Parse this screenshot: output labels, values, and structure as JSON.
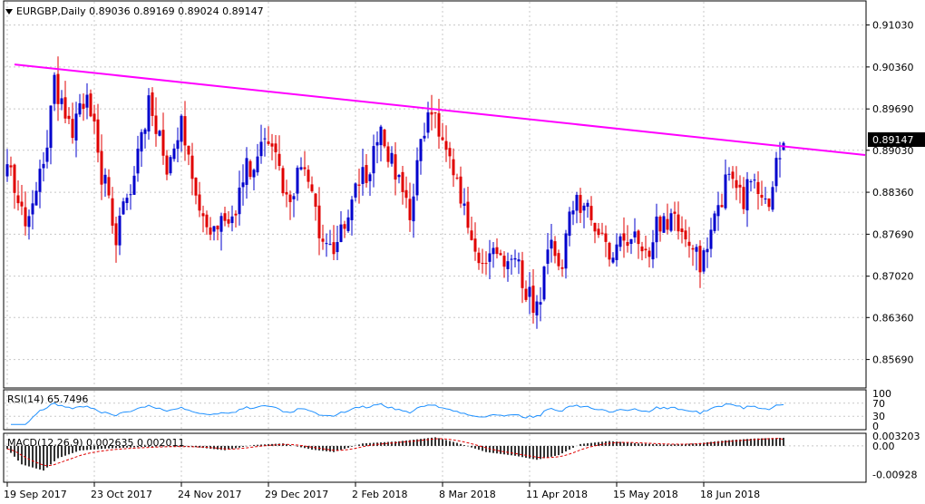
{
  "header": {
    "symbol_line": "EURGBP,Daily  0.89036 0.89169 0.89024 0.89147",
    "rsi_label": "RSI(14) 65.7496",
    "macd_label": "MACD(12,26,9) 0.002635 0.002011"
  },
  "colors": {
    "bull": "#0000cc",
    "bear": "#e00000",
    "trendline": "#ff00ff",
    "rsi_line": "#1e90ff",
    "macd_hist": "#000000",
    "macd_signal": "#e00000",
    "grid": "#c8c8c8"
  },
  "price_marker": "0.89147",
  "chart_data": [
    {
      "type": "candlestick",
      "title": "EURGBP,Daily",
      "last_ohlc": {
        "open": 0.89036,
        "high": 0.89169,
        "low": 0.89024,
        "close": 0.89147
      },
      "ylim": [
        0.8525,
        0.914
      ],
      "y_ticks": [
        "0.91030",
        "0.90360",
        "0.89690",
        "0.89030",
        "0.88360",
        "0.87690",
        "0.87020",
        "0.86360",
        "0.85690"
      ],
      "y_tick_values": [
        0.9103,
        0.9036,
        0.8969,
        0.8903,
        0.8836,
        0.8769,
        0.8702,
        0.8636,
        0.8569
      ],
      "x_ticks": [
        "19 Sep 2017",
        "23 Oct 2017",
        "24 Nov 2017",
        "29 Dec 2017",
        "2 Feb 2018",
        "8 Mar 2018",
        "11 Apr 2018",
        "15 May 2018",
        "18 Jun 2018"
      ],
      "x_tick_index": [
        0,
        24,
        48,
        72,
        96,
        120,
        144,
        168,
        192
      ],
      "count": 215,
      "anchors": [
        [
          0,
          0.887
        ],
        [
          6,
          0.879
        ],
        [
          10,
          0.888
        ],
        [
          13,
          0.901
        ],
        [
          18,
          0.892
        ],
        [
          22,
          0.901
        ],
        [
          26,
          0.887
        ],
        [
          30,
          0.877
        ],
        [
          34,
          0.883
        ],
        [
          39,
          0.899
        ],
        [
          44,
          0.887
        ],
        [
          48,
          0.894
        ],
        [
          52,
          0.882
        ],
        [
          57,
          0.877
        ],
        [
          62,
          0.88
        ],
        [
          66,
          0.887
        ],
        [
          70,
          0.891
        ],
        [
          74,
          0.888
        ],
        [
          78,
          0.883
        ],
        [
          82,
          0.888
        ],
        [
          86,
          0.878
        ],
        [
          90,
          0.873
        ],
        [
          94,
          0.88
        ],
        [
          98,
          0.886
        ],
        [
          103,
          0.892
        ],
        [
          108,
          0.885
        ],
        [
          111,
          0.881
        ],
        [
          115,
          0.894
        ],
        [
          118,
          0.896
        ],
        [
          121,
          0.889
        ],
        [
          125,
          0.884
        ],
        [
          129,
          0.873
        ],
        [
          133,
          0.875
        ],
        [
          137,
          0.873
        ],
        [
          141,
          0.871
        ],
        [
          145,
          0.866
        ],
        [
          147,
          0.864
        ],
        [
          149,
          0.876
        ],
        [
          153,
          0.872
        ],
        [
          156,
          0.882
        ],
        [
          160,
          0.883
        ],
        [
          164,
          0.876
        ],
        [
          168,
          0.874
        ],
        [
          172,
          0.878
        ],
        [
          176,
          0.873
        ],
        [
          180,
          0.879
        ],
        [
          184,
          0.878
        ],
        [
          188,
          0.876
        ],
        [
          191,
          0.873
        ],
        [
          195,
          0.88
        ],
        [
          199,
          0.886
        ],
        [
          203,
          0.883
        ],
        [
          207,
          0.885
        ],
        [
          210,
          0.883
        ],
        [
          212,
          0.887
        ],
        [
          214,
          0.89147
        ]
      ],
      "trendline": {
        "from": [
          2,
          0.904
        ],
        "to": [
          229,
          0.89
        ]
      }
    },
    {
      "type": "line",
      "title": "RSI(14)",
      "ylim": [
        0,
        100
      ],
      "y_ticks": [
        "100",
        "70",
        "30",
        "0"
      ],
      "y_tick_values": [
        100,
        70,
        30,
        0
      ],
      "last_value": 65.7496
    },
    {
      "type": "bar",
      "title": "MACD(12,26,9)",
      "y_ticks": [
        "0.003203",
        "0.00",
        "-0.00928"
      ],
      "y_tick_values": [
        0.003203,
        0.0,
        -0.00928
      ],
      "ylim": [
        -0.0115,
        0.0038
      ],
      "series": [
        {
          "name": "MACD",
          "last": 0.002635
        },
        {
          "name": "Signal",
          "last": 0.002011
        }
      ],
      "anchors": [
        [
          0,
          -0.001
        ],
        [
          4,
          -0.006
        ],
        [
          10,
          -0.008
        ],
        [
          14,
          -0.004
        ],
        [
          20,
          -0.0015
        ],
        [
          28,
          -0.0008
        ],
        [
          36,
          -0.0004
        ],
        [
          44,
          -0.0001
        ],
        [
          52,
          -0.0004
        ],
        [
          60,
          -0.0014
        ],
        [
          68,
          0.0003
        ],
        [
          76,
          0.0008
        ],
        [
          84,
          -0.0012
        ],
        [
          90,
          -0.002
        ],
        [
          98,
          0.0008
        ],
        [
          108,
          0.0015
        ],
        [
          118,
          0.0028
        ],
        [
          124,
          0.001
        ],
        [
          132,
          -0.002
        ],
        [
          140,
          -0.0032
        ],
        [
          146,
          -0.0045
        ],
        [
          152,
          -0.003
        ],
        [
          158,
          0.0006
        ],
        [
          166,
          0.0016
        ],
        [
          174,
          0.0008
        ],
        [
          182,
          0.0004
        ],
        [
          190,
          0.0008
        ],
        [
          198,
          0.0018
        ],
        [
          206,
          0.0024
        ],
        [
          214,
          0.002635
        ]
      ]
    }
  ]
}
